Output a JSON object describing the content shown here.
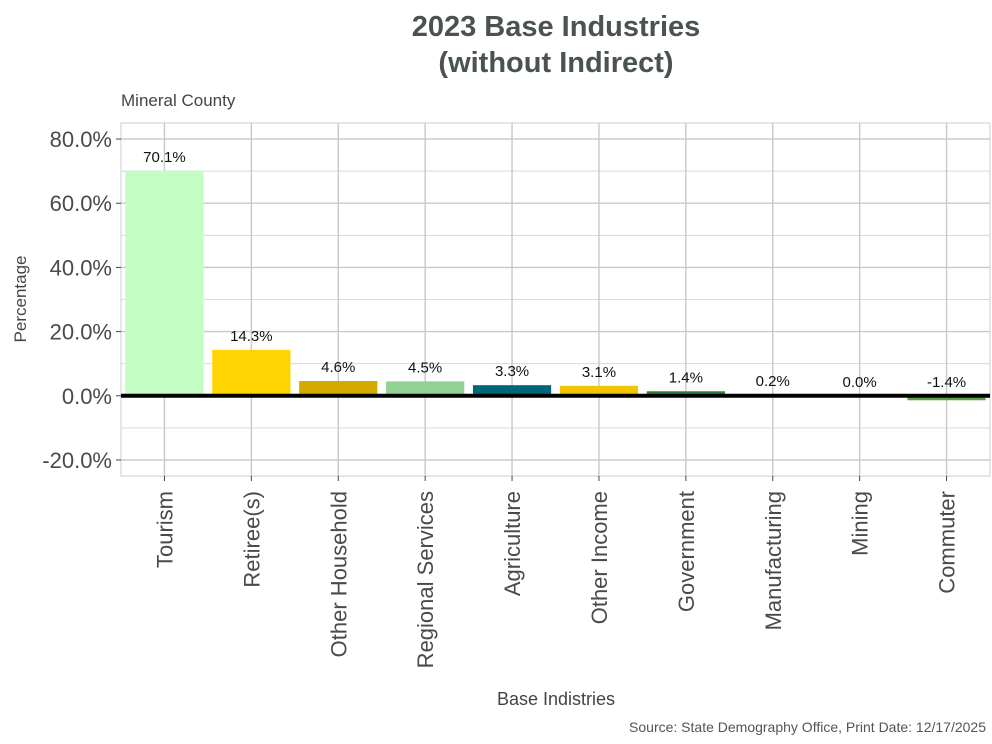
{
  "chart_data": {
    "type": "bar",
    "title_line1": "2023 Base Industries",
    "title_line2": "(without Indirect)",
    "subtitle": "Mineral County",
    "xlabel": "Base Indistries",
    "ylabel": "Percentage",
    "caption": "Source: State Demography Office, Print Date: 12/17/2025",
    "categories": [
      "Tourism",
      "Retiree(s)",
      "Other Household",
      "Regional Services",
      "Agriculture",
      "Other Income",
      "Government",
      "Manufacturing",
      "Mining",
      "Commuter"
    ],
    "values": [
      70.1,
      14.3,
      4.6,
      4.5,
      3.3,
      3.1,
      1.4,
      0.2,
      0.0,
      -1.4
    ],
    "value_labels": [
      "70.1%",
      "14.3%",
      "4.6%",
      "4.5%",
      "3.3%",
      "3.1%",
      "1.4%",
      "0.2%",
      "0.0%",
      "-1.4%"
    ],
    "colors": [
      "#C3FDC3",
      "#FFD400",
      "#D4AA00",
      "#94D195",
      "#00667C",
      "#F1C500",
      "#2E7F39",
      "#F4C800",
      "#C4941F",
      "#5E9F4E"
    ],
    "ylim": [
      -25,
      85
    ],
    "yticks": [
      -20,
      0,
      20,
      40,
      60,
      80
    ],
    "ytick_labels": [
      "-20.0%",
      "0.0%",
      "20.0%",
      "40.0%",
      "60.0%",
      "80.0%"
    ],
    "grid": true,
    "zero_line": true
  }
}
